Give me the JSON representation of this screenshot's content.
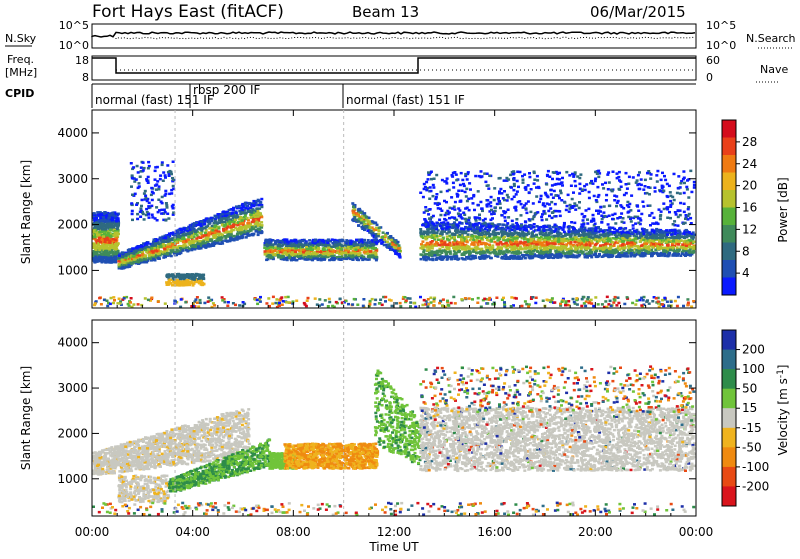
{
  "header": {
    "station": "Fort Hays East (fitACF)",
    "beam": "Beam 13",
    "date": "06/Mar/2015"
  },
  "noise_panel": {
    "left_label": "N.Sky",
    "right_label": "N.Search",
    "left_ticks": [
      "10^5",
      "10^0"
    ],
    "right_ticks": [
      "10^5",
      "10^0"
    ]
  },
  "freq_panel": {
    "left_label_line1": "Freq.",
    "left_label_line2": "[MHz]",
    "left_ticks": [
      "18",
      "8"
    ],
    "right_label": "Nave",
    "right_ticks": [
      "60",
      "0"
    ]
  },
  "cpid_panel": {
    "label": "CPID",
    "segments": [
      {
        "text": "normal (fast) 151 IF",
        "start_hour": 0
      },
      {
        "text": "rbsp 200 IF",
        "start_hour": 3.3
      },
      {
        "text": "normal (fast) 151 IF",
        "start_hour": 10
      }
    ]
  },
  "time_axis": {
    "label": "Time UT",
    "ticks": [
      "00:00",
      "04:00",
      "08:00",
      "12:00",
      "16:00",
      "20:00",
      "00:00"
    ]
  },
  "chart_data": [
    {
      "type": "heatmap",
      "title": "Power",
      "ylabel": "Slant Range [km]",
      "xlabel": "Time UT",
      "xlim_hours": [
        0,
        24
      ],
      "ylim_km": [
        180,
        4500
      ],
      "yticks": [
        "1000",
        "2000",
        "3000",
        "4000"
      ],
      "colorbar": {
        "label": "Power [dB]",
        "ticks": [
          "4",
          "8",
          "12",
          "16",
          "20",
          "24",
          "28"
        ],
        "colors": [
          "#0a1aff",
          "#1f4fb3",
          "#2f6a80",
          "#3f8a5a",
          "#57b23a",
          "#b6c22e",
          "#ecb21c",
          "#ef7a12",
          "#e9401a",
          "#d40c1c"
        ]
      },
      "scatter_bands": [
        {
          "start_hour": 0,
          "end_hour": 1,
          "range_km": 1650
        },
        {
          "start_hour": 1,
          "end_hour": 6.6,
          "range_km": "1050 to 2100"
        },
        {
          "start_hour": 2.9,
          "end_hour": 4.3,
          "range_km": 800
        },
        {
          "start_hour": 7,
          "end_hour": 11.3,
          "range_km": 1350
        },
        {
          "start_hour": 13,
          "end_hour": 24,
          "range_km": "1200 to 1900"
        }
      ]
    },
    {
      "type": "heatmap",
      "title": "Velocity",
      "ylabel": "Slant Range [km]",
      "xlabel": "Time UT",
      "xlim_hours": [
        0,
        24
      ],
      "ylim_km": [
        180,
        4500
      ],
      "yticks": [
        "1000",
        "2000",
        "3000",
        "4000"
      ],
      "colorbar": {
        "label": "Velocity [m s^-1]",
        "ticks": [
          "200",
          "100",
          "50",
          "15",
          "-15",
          "-50",
          "-100",
          "-200"
        ],
        "colors": [
          "#1d2fa8",
          "#2d6d8a",
          "#2e8c4a",
          "#70c43a",
          "#c8c8c0",
          "#efb31e",
          "#ef8a10",
          "#e84a14",
          "#d9141c"
        ]
      },
      "scatter_bands": [
        {
          "start_hour": 0,
          "end_hour": 6,
          "velocity": "-15 to 15"
        },
        {
          "start_hour": 3,
          "end_hour": 7,
          "velocity": "50 to 100"
        },
        {
          "start_hour": 7.5,
          "end_hour": 11.3,
          "velocity": "-100 to -50"
        },
        {
          "start_hour": 11.2,
          "end_hour": 13,
          "velocity": "15 to 50"
        },
        {
          "start_hour": 13,
          "end_hour": 24,
          "velocity": "-15 to 15"
        }
      ]
    }
  ]
}
